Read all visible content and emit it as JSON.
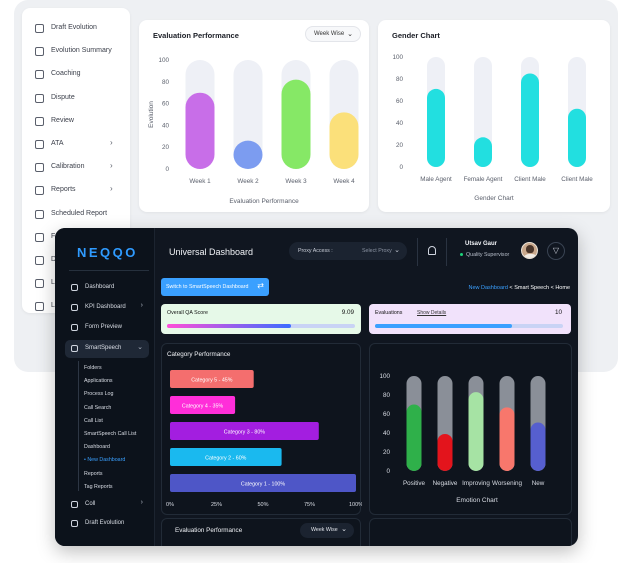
{
  "light_panel": {
    "sidebar_items": [
      {
        "label": "Draft Evolution",
        "icon": "draft-icon",
        "chevron": false
      },
      {
        "label": "Evolution Summary",
        "icon": "sliders-icon",
        "chevron": false
      },
      {
        "label": "Coaching",
        "icon": "coaching-icon",
        "chevron": false
      },
      {
        "label": "Dispute",
        "icon": "shield-icon",
        "chevron": false
      },
      {
        "label": "Review",
        "icon": "review-icon",
        "chevron": false
      },
      {
        "label": "ATA",
        "icon": "ata-icon",
        "chevron": true
      },
      {
        "label": "Calibration",
        "icon": "calibration-icon",
        "chevron": true
      },
      {
        "label": "Reports",
        "icon": "reports-icon",
        "chevron": true
      },
      {
        "label": "Scheduled Report",
        "icon": "calendar-icon",
        "chevron": false
      },
      {
        "label": "F",
        "icon": "folder-icon",
        "chevron": false
      },
      {
        "label": "D",
        "icon": "download-icon",
        "chevron": false
      },
      {
        "label": "L",
        "icon": "list-icon",
        "chevron": false
      },
      {
        "label": "L",
        "icon": "user-icon",
        "chevron": false
      }
    ],
    "evaluation_performance": {
      "title": "Evaluation Performance",
      "select_value": "Week Wise",
      "chart_data": {
        "type": "bar",
        "title": "Evaluation Performance",
        "xlabel": "Evaluation Performance",
        "ylabel": "Evolution",
        "ylim": [
          0,
          100
        ],
        "yticks": [
          0,
          20,
          40,
          60,
          80,
          100
        ],
        "categories": [
          "Week 1",
          "Week 2",
          "Week 3",
          "Week 4"
        ],
        "values": [
          70,
          26,
          82,
          52
        ],
        "colors": [
          "#c86ee8",
          "#7c9cf0",
          "#86e866",
          "#fbe07a"
        ],
        "track_color": "#eef0f6",
        "grid": false
      }
    },
    "gender_chart": {
      "title": "Gender Chart",
      "chart_data": {
        "type": "bar",
        "title": "Gender Chart",
        "xlabel": "Gender Chart",
        "ylabel": "",
        "ylim": [
          0,
          100
        ],
        "yticks": [
          0,
          20,
          40,
          60,
          80,
          100
        ],
        "categories": [
          "Male Agent",
          "Female Agent",
          "Client Male",
          "Client Male"
        ],
        "values": [
          71,
          27,
          85,
          53
        ],
        "colors": [
          "#22dfe0",
          "#22dfe0",
          "#22dfe0",
          "#22dfe0"
        ],
        "track_color": "#eef0f6",
        "grid": false
      }
    }
  },
  "dark_panel": {
    "logo": "NEQQO",
    "nav_items": [
      {
        "label": "Dashboard",
        "icon": "dashboard-icon",
        "chevron": false
      },
      {
        "label": "KPI Dashboard",
        "icon": "kpi-icon",
        "chevron": true
      },
      {
        "label": "Form Preview",
        "icon": "form-preview-icon",
        "chevron": false
      },
      {
        "label": "SmartSpeech",
        "icon": "microphone-icon",
        "chevron": true
      }
    ],
    "sub_items": [
      {
        "label": "Folders",
        "active": false
      },
      {
        "label": "Applications",
        "active": false
      },
      {
        "label": "Process Log",
        "active": false
      },
      {
        "label": "Call Search",
        "active": false
      },
      {
        "label": "Call List",
        "active": false
      },
      {
        "label": "SmartSpeech Call List",
        "active": false
      },
      {
        "label": "Dashboard",
        "active": false
      },
      {
        "label": "• New Dashboard",
        "active": true
      },
      {
        "label": "Reports",
        "active": false
      },
      {
        "label": "Tag Reports",
        "active": false
      }
    ],
    "nav_bottom": [
      {
        "label": "Coll",
        "icon": "call-icon",
        "chevron": true
      },
      {
        "label": "Draft Evolution",
        "icon": "draft-icon",
        "chevron": false
      }
    ],
    "header": {
      "title": "Universal Dashboard",
      "proxy_label": "Proxy Access :",
      "proxy_value": "Select Proxy",
      "user_name": "Utsav Gaur",
      "user_role": "Quality Supervisor"
    },
    "switch_button": "Switch to SmartSpeech Dashboard",
    "breadcrumb": {
      "link": "New Dashboard",
      "sep1": " < ",
      "mid": "Smart Speech",
      "sep2": " < ",
      "last": "Home"
    },
    "qa_score": {
      "title": "Overall QA Score",
      "value": "9.09",
      "progress": 0.66
    },
    "evaluations": {
      "title": "Evaluations",
      "link": "Show Details",
      "value": "10",
      "progress": 0.73
    },
    "category_performance": {
      "title": "Category Performance",
      "chart_data": {
        "type": "bar",
        "orientation": "horizontal",
        "title": "Category Performance",
        "categories": [
          "Category 5 - 45%",
          "Category 4 - 35%",
          "Category 3 - 80%",
          "Category 2 - 60%",
          "Category 1 - 100%"
        ],
        "values": [
          45,
          35,
          80,
          60,
          100
        ],
        "colors": [
          "#f46e6e",
          "#ff2ed9",
          "#a31ee0",
          "#1ab9ef",
          "#4e56c7"
        ],
        "xticks": [
          "0%",
          "25%",
          "50%",
          "75%",
          "100%"
        ],
        "xlim": [
          0,
          100
        ]
      }
    },
    "emotion_chart": {
      "chart_data": {
        "type": "bar",
        "title": "",
        "xlabel": "Emotion Chart",
        "ylim": [
          0,
          100
        ],
        "yticks": [
          0,
          20,
          40,
          60,
          80,
          100
        ],
        "categories": [
          "Positive",
          "Negative",
          "Improving",
          "Worsening",
          "New"
        ],
        "values": [
          70,
          39,
          83,
          67,
          51
        ],
        "colors": [
          "#2fb04a",
          "#e3141c",
          "#a6e3a4",
          "#f8776c",
          "#565fcf"
        ],
        "track_color": "#8a8f98",
        "grid": false
      }
    },
    "evaluation_performance": {
      "title": "Evaluation Performance",
      "select_value": "Week Wise"
    }
  }
}
